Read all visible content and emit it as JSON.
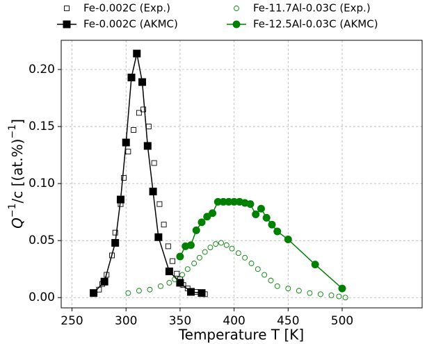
{
  "chart_data": {
    "type": "scatter",
    "xlabel": "Temperature T [K]",
    "ylabel": [
      "Q",
      "−1",
      "/c [(at.%)",
      "−1",
      "]"
    ],
    "xlim": [
      240,
      574
    ],
    "ylim": [
      -0.009,
      0.2256
    ],
    "xticks": [
      250,
      300,
      350,
      400,
      450,
      500
    ],
    "yticks": [
      {
        "value": 0,
        "label": "0.00"
      },
      {
        "value": 0.05,
        "label": "0.05"
      },
      {
        "value": 0.1,
        "label": "0.10"
      },
      {
        "value": 0.15,
        "label": "0.15"
      },
      {
        "value": 0.2,
        "label": "0.20"
      }
    ],
    "grid": true,
    "legend": "top",
    "series": [
      {
        "name": "Fe-0.002C (Exp.)",
        "color": "#000000",
        "marker": "square",
        "filled": false,
        "line": false,
        "x": [
          270,
          275,
          278,
          282,
          287,
          290,
          295,
          298,
          302,
          307,
          312,
          316,
          321,
          326,
          331,
          335,
          339,
          343,
          347,
          350,
          353,
          357,
          361,
          365,
          369,
          373
        ],
        "values": [
          0.004,
          0.007,
          0.012,
          0.02,
          0.037,
          0.057,
          0.082,
          0.105,
          0.128,
          0.147,
          0.162,
          0.165,
          0.15,
          0.118,
          0.082,
          0.064,
          0.045,
          0.032,
          0.021,
          0.016,
          0.011,
          0.008,
          0.006,
          0.005,
          0.004,
          0.003
        ]
      },
      {
        "name": "Fe-0.002C (AKMC)",
        "color": "#000000",
        "marker": "square",
        "filled": true,
        "line": true,
        "x": [
          270,
          280,
          290,
          295,
          300,
          305,
          310,
          315,
          320,
          325,
          330,
          340,
          350,
          360,
          370
        ],
        "values": [
          0.004,
          0.014,
          0.048,
          0.086,
          0.136,
          0.193,
          0.214,
          0.189,
          0.133,
          0.093,
          0.053,
          0.023,
          0.013,
          0.005,
          0.004
        ]
      },
      {
        "name": "Fe-11.7Al-0.03C (Exp.)",
        "color": "#008000",
        "marker": "circle",
        "filled": false,
        "line": false,
        "x": [
          302,
          312,
          322,
          332,
          340,
          345,
          352,
          357,
          363,
          368,
          373,
          378,
          383,
          388,
          393,
          398,
          404,
          410,
          416,
          422,
          428,
          434,
          440,
          450,
          460,
          470,
          480,
          490,
          497,
          503
        ],
        "values": [
          0.004,
          0.006,
          0.007,
          0.01,
          0.013,
          0.016,
          0.02,
          0.025,
          0.03,
          0.035,
          0.04,
          0.044,
          0.047,
          0.048,
          0.046,
          0.043,
          0.039,
          0.035,
          0.03,
          0.025,
          0.02,
          0.015,
          0.01,
          0.008,
          0.006,
          0.004,
          0.003,
          0.002,
          0.001,
          0
        ]
      },
      {
        "name": "Fe-12.5Al-0.03C (AKMC)",
        "color": "#008000",
        "marker": "circle",
        "filled": true,
        "line": true,
        "x": [
          350,
          355,
          360,
          365,
          370,
          375,
          380,
          385,
          390,
          395,
          400,
          405,
          410,
          415,
          420,
          425,
          430,
          435,
          440,
          450,
          475,
          500
        ],
        "values": [
          0.036,
          0.045,
          0.046,
          0.059,
          0.066,
          0.071,
          0.074,
          0.084,
          0.084,
          0.084,
          0.084,
          0.084,
          0.083,
          0.082,
          0.073,
          0.078,
          0.07,
          0.064,
          0.058,
          0.051,
          0.029,
          0.008
        ]
      }
    ]
  }
}
